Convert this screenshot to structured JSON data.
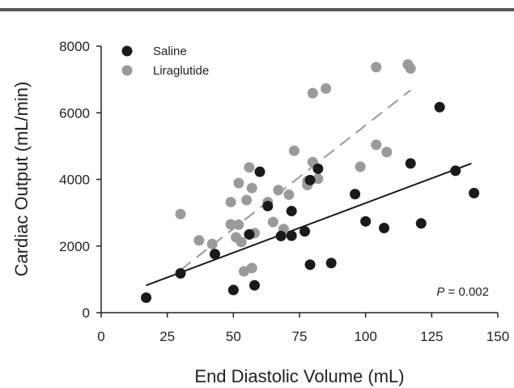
{
  "chart_data": {
    "type": "scatter",
    "title": "",
    "xlabel": "End Diastolic Volume (mL)",
    "ylabel": "Cardiac Output (mL/min)",
    "xlim": [
      0,
      150
    ],
    "ylim": [
      0,
      8000
    ],
    "xticks": [
      "0",
      "25",
      "50",
      "75",
      "100",
      "125",
      "150"
    ],
    "yticks": [
      "0",
      "2000",
      "4000",
      "6000",
      "8000"
    ],
    "grid": false,
    "legend_position": "top-left",
    "annotation": {
      "italic": "P",
      "rest": " = 0.002"
    },
    "series": [
      {
        "name": "Saline",
        "color": "#1a1a1a",
        "fit_line": {
          "style": "solid",
          "x": [
            17,
            140
          ],
          "y": [
            820,
            4480
          ]
        },
        "points": [
          [
            17,
            450
          ],
          [
            30,
            1180
          ],
          [
            43,
            1760
          ],
          [
            50,
            680
          ],
          [
            56,
            2350
          ],
          [
            58,
            820
          ],
          [
            60,
            4230
          ],
          [
            63,
            3200
          ],
          [
            68,
            2300
          ],
          [
            72,
            2310
          ],
          [
            72,
            3050
          ],
          [
            77,
            2440
          ],
          [
            79,
            1440
          ],
          [
            79,
            3980
          ],
          [
            82,
            4320
          ],
          [
            87,
            1490
          ],
          [
            96,
            3560
          ],
          [
            100,
            2740
          ],
          [
            107,
            2540
          ],
          [
            117,
            4480
          ],
          [
            121,
            2680
          ],
          [
            128,
            6170
          ],
          [
            134,
            4260
          ],
          [
            141,
            3590
          ]
        ]
      },
      {
        "name": "Liraglutide",
        "color": "#9a9a9a",
        "fit_line": {
          "style": "dashed",
          "x": [
            30,
            117
          ],
          "y": [
            1280,
            6680
          ]
        },
        "points": [
          [
            30,
            2960
          ],
          [
            37,
            2170
          ],
          [
            42,
            2060
          ],
          [
            49,
            2650
          ],
          [
            49,
            3320
          ],
          [
            51,
            2260
          ],
          [
            52,
            2640
          ],
          [
            52,
            3890
          ],
          [
            53,
            2120
          ],
          [
            54,
            1240
          ],
          [
            55,
            3380
          ],
          [
            56,
            4360
          ],
          [
            57,
            1340
          ],
          [
            57,
            3740
          ],
          [
            58,
            2390
          ],
          [
            63,
            3320
          ],
          [
            65,
            2720
          ],
          [
            67,
            3680
          ],
          [
            69,
            2510
          ],
          [
            71,
            3540
          ],
          [
            73,
            4860
          ],
          [
            78,
            3830
          ],
          [
            78,
            3950
          ],
          [
            80,
            4520
          ],
          [
            80,
            6590
          ],
          [
            82,
            4020
          ],
          [
            85,
            6730
          ],
          [
            98,
            4380
          ],
          [
            104,
            5040
          ],
          [
            104,
            7370
          ],
          [
            108,
            4820
          ],
          [
            116,
            7450
          ],
          [
            117,
            7330
          ]
        ]
      }
    ]
  }
}
